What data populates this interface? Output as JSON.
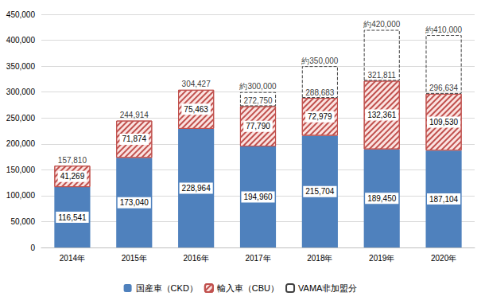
{
  "chart_data": {
    "type": "bar",
    "stacked": true,
    "data_labels": true,
    "grid": true,
    "legend": "bottom",
    "categories": [
      "2014年",
      "2015年",
      "2016年",
      "2017年",
      "2018年",
      "2019年",
      "2020年"
    ],
    "series": [
      {
        "name": "国産車（CKD）",
        "color": "#4f81bd",
        "values": [
          116541,
          173040,
          228964,
          194960,
          215704,
          189450,
          187104
        ],
        "value_labels": [
          "116,541",
          "173,040",
          "228,964",
          "194,960",
          "215,704",
          "189,450",
          "187,104"
        ]
      },
      {
        "name": "輸入車（CBU）",
        "color": "#c0504d",
        "marker": "hatch",
        "values": [
          41269,
          71874,
          75463,
          77790,
          72979,
          132361,
          109530
        ],
        "value_labels": [
          "41,269",
          "71,874",
          "75,463",
          "77,790",
          "72,979",
          "132,361",
          "109,530"
        ]
      },
      {
        "name": "VAMA非加盟分",
        "color": "#404040",
        "line_style": "dashed",
        "data_labels": false,
        "values": [
          null,
          null,
          null,
          27250,
          61317,
          98189,
          113366
        ]
      }
    ],
    "totals": {
      "values": [
        157810,
        244914,
        304427,
        272750,
        288683,
        321811,
        296634
      ],
      "labels": [
        "157,810",
        "244,914",
        "304,427",
        "272,750",
        "288,683",
        "321,811",
        "296,634"
      ]
    },
    "approx_totals": {
      "values": [
        null,
        null,
        null,
        300000,
        350000,
        420000,
        410000
      ],
      "labels": [
        null,
        null,
        null,
        "約300,000",
        "約350,000",
        "約420,000",
        "約410,000"
      ]
    },
    "ylim": [
      0,
      450000
    ],
    "yticks": [
      0,
      {
        "value": 50000,
        "label": "50,000"
      },
      {
        "value": 100000,
        "label": "100,000"
      },
      {
        "value": 150000,
        "label": "150,000"
      },
      {
        "value": 200000,
        "label": "200,000"
      },
      {
        "value": 250000,
        "label": "250,000"
      },
      {
        "value": 300000,
        "label": "300,000"
      },
      {
        "value": 350000,
        "label": "350,000"
      },
      {
        "value": 400000,
        "label": "400,000"
      },
      {
        "value": 450000,
        "label": "450,000"
      }
    ]
  }
}
